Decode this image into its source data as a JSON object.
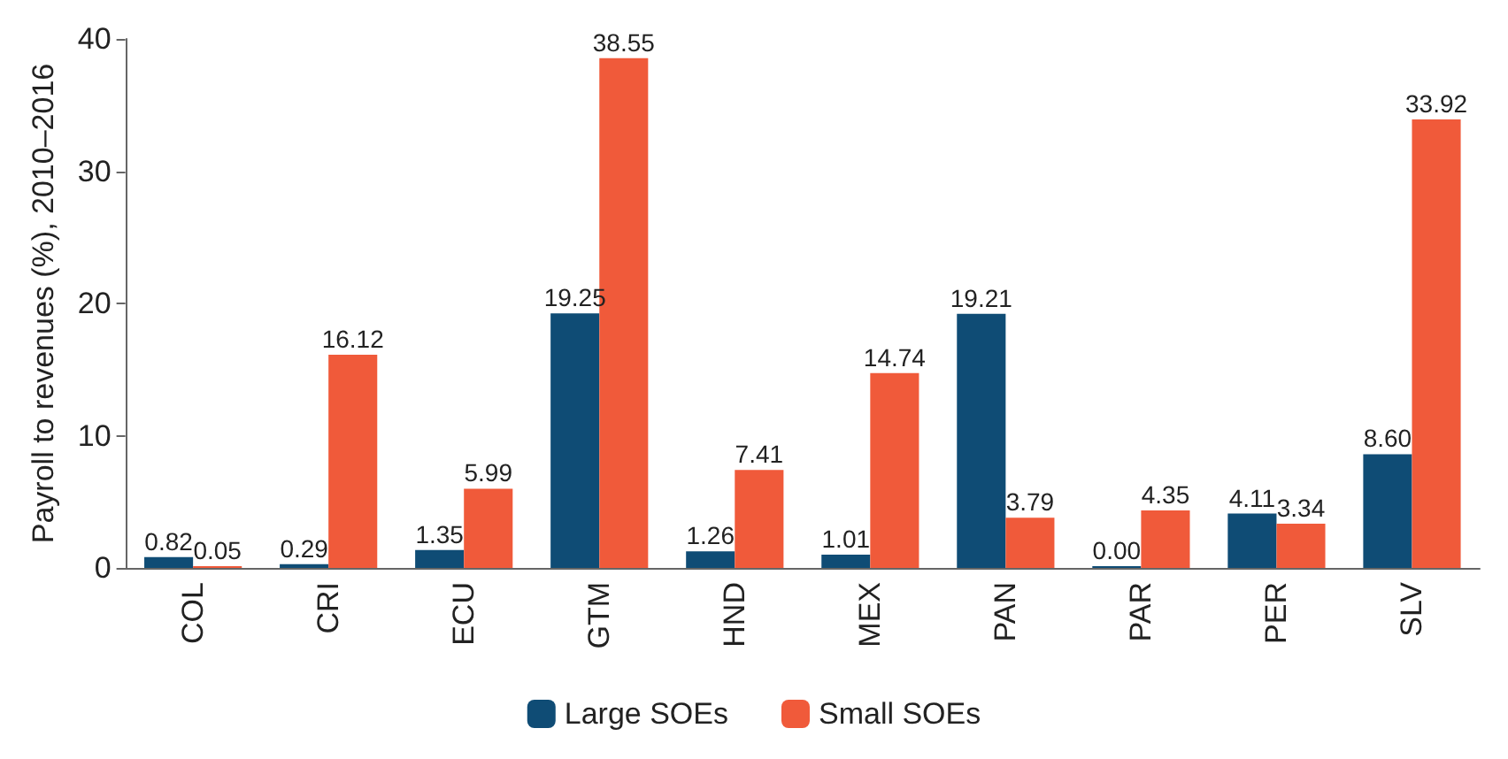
{
  "chart_data": {
    "type": "bar",
    "ylabel": "Payroll to revenues (%), 2010–2016",
    "categories": [
      "COL",
      "CRI",
      "ECU",
      "GTM",
      "HND",
      "MEX",
      "PAN",
      "PAR",
      "PER",
      "SLV"
    ],
    "series": [
      {
        "name": "Large SOEs",
        "color": "#0f4c75",
        "values": [
          0.82,
          0.29,
          1.35,
          19.25,
          1.26,
          1.01,
          19.21,
          0.0,
          4.11,
          8.6
        ],
        "value_labels": [
          "0.82",
          "0.29",
          "1.35",
          "19.25",
          "1.26",
          "1.01",
          "19.21",
          "0.00",
          "4.11",
          "8.60"
        ]
      },
      {
        "name": "Small SOEs",
        "color": "#f05a3a",
        "values": [
          0.05,
          16.12,
          5.99,
          38.55,
          7.41,
          14.74,
          3.79,
          4.35,
          3.34,
          33.92
        ],
        "value_labels": [
          "0.05",
          "16.12",
          "5.99",
          "38.55",
          "7.41",
          "14.74",
          "3.79",
          "4.35",
          "3.34",
          "33.92"
        ]
      }
    ],
    "ylim": [
      0,
      40
    ],
    "yticks": [
      0,
      10,
      20,
      30,
      40
    ],
    "grid": false,
    "legend": "bottom"
  }
}
